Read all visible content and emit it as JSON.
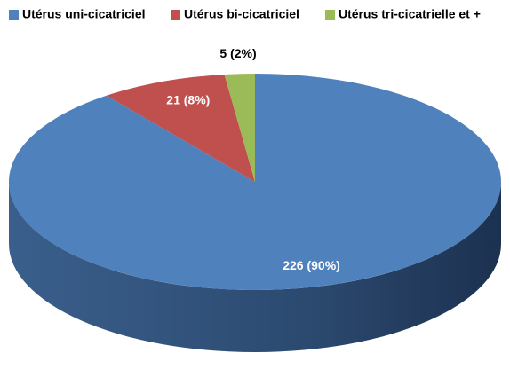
{
  "chart_data": {
    "type": "pie",
    "categories": [
      "Utérus uni-cicatriciel",
      "Utérus bi-cicatriciel",
      "Utérus tri-cicatrielle et +"
    ],
    "values": [
      226,
      21,
      5
    ],
    "value_labels": [
      "226 (90%)",
      "21 (8%)",
      "5 (2%)"
    ],
    "colors": [
      "#4f81bd",
      "#c0504d",
      "#9bbb59"
    ],
    "legend": "top"
  }
}
